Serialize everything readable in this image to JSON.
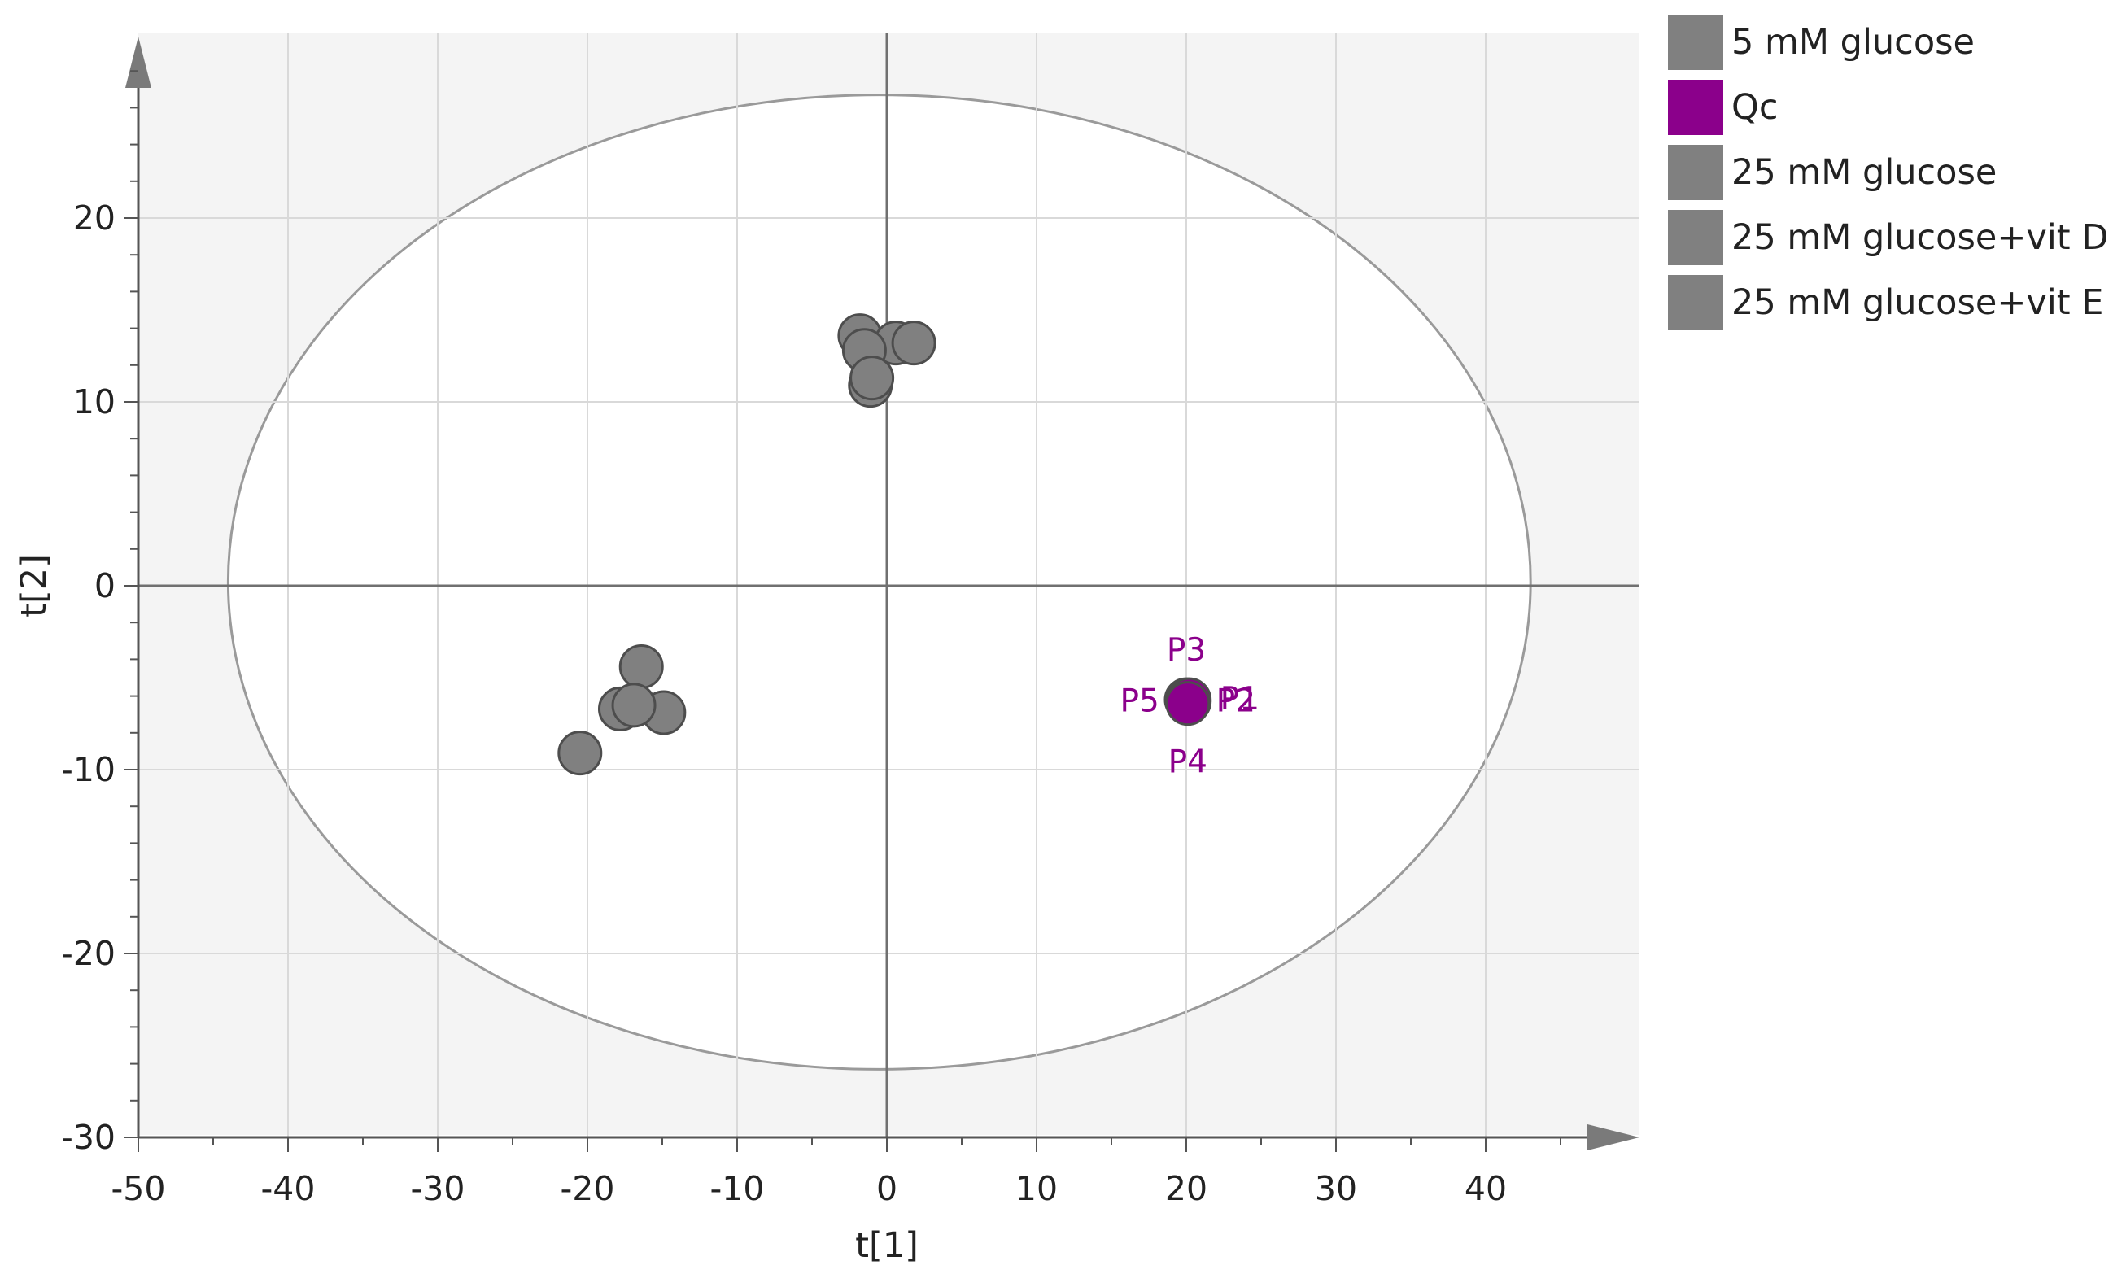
{
  "chart_data": {
    "type": "scatter",
    "xlabel": "t[1]",
    "ylabel": "t[2]",
    "xlim": [
      -50,
      50
    ],
    "ylim": [
      -30,
      30
    ],
    "x_ticks": [
      -50,
      -40,
      -30,
      -20,
      -10,
      0,
      10,
      20,
      30,
      40
    ],
    "y_ticks": [
      -30,
      -20,
      -10,
      0,
      10,
      20
    ],
    "x_tick_labels": [
      "-50",
      "-40",
      "-30",
      "-20",
      "-10",
      "0",
      "10",
      "20",
      "30",
      "40"
    ],
    "y_tick_labels": [
      "-30",
      "-20",
      "-10",
      "0",
      "10",
      "20"
    ],
    "grid": true,
    "legend_position": "top-right outside",
    "confidence_ellipse": {
      "center": [
        -0.5,
        0.2
      ],
      "radius_x": 43.5,
      "radius_y": 26.5
    },
    "series": [
      {
        "name": "5 mM glucose",
        "color": "#808080",
        "points": []
      },
      {
        "name": "Qc",
        "color": "#8B008B",
        "points": [
          {
            "x": 20.0,
            "y": -6.2,
            "label": "P3"
          },
          {
            "x": 20.1,
            "y": -6.3,
            "label": "P5"
          },
          {
            "x": 20.2,
            "y": -6.3,
            "label": "P2"
          },
          {
            "x": 20.2,
            "y": -6.2,
            "label": "P1"
          },
          {
            "x": 20.1,
            "y": -6.4,
            "label": "P4"
          }
        ]
      },
      {
        "name": "25 mM glucose",
        "color": "#808080",
        "points": [
          {
            "x": -20.5,
            "y": -9.1
          },
          {
            "x": -17.8,
            "y": -6.7
          },
          {
            "x": -16.4,
            "y": -4.4
          },
          {
            "x": -14.9,
            "y": -6.9
          },
          {
            "x": -16.9,
            "y": -6.5
          }
        ]
      },
      {
        "name": "25 mM glucose+vit D",
        "color": "#808080",
        "points": [
          {
            "x": -1.8,
            "y": 13.6
          },
          {
            "x": 0.6,
            "y": 13.2
          },
          {
            "x": 1.8,
            "y": 13.2
          },
          {
            "x": -1.5,
            "y": 12.8
          }
        ]
      },
      {
        "name": "25 mM glucose+vit E",
        "color": "#808080",
        "points": [
          {
            "x": -1.1,
            "y": 10.9
          },
          {
            "x": -1.0,
            "y": 11.3
          }
        ]
      }
    ]
  }
}
